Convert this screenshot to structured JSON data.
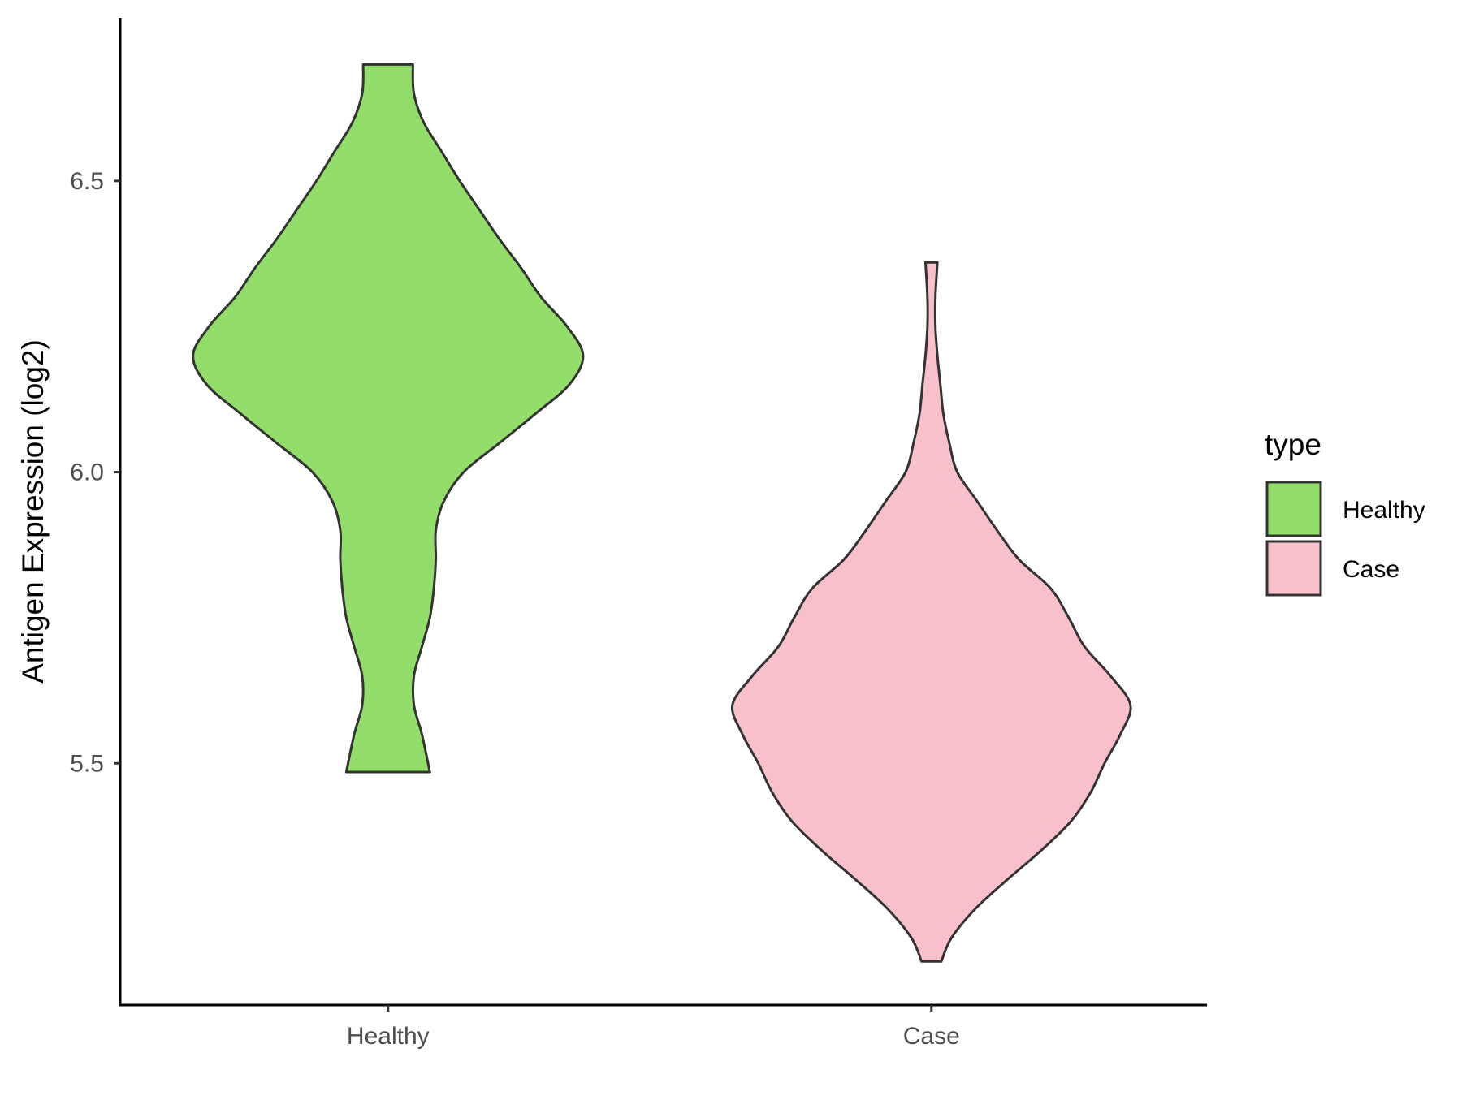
{
  "chart_data": {
    "type": "violin",
    "title": "",
    "xlabel": "",
    "ylabel": "Antigen Expression (log2)",
    "categories": [
      "Healthy",
      "Case"
    ],
    "ylim": [
      5.085,
      6.78
    ],
    "yticks": [
      5.5,
      6.0,
      6.5
    ],
    "ytick_labels": [
      "5.5",
      "6.0",
      "6.5"
    ],
    "grid": false,
    "legend": {
      "title": "type",
      "position": "right",
      "entries": [
        {
          "label": "Healthy",
          "color": "#93dd6b"
        },
        {
          "label": "Case",
          "color": "#f8c0cb"
        }
      ]
    },
    "series": [
      {
        "category": "Healthy",
        "color": "#93dd6b",
        "min": 5.485,
        "max": 6.7,
        "density_profile": [
          [
            5.485,
            0.21
          ],
          [
            5.55,
            0.17
          ],
          [
            5.6,
            0.13
          ],
          [
            5.65,
            0.13
          ],
          [
            5.7,
            0.17
          ],
          [
            5.75,
            0.21
          ],
          [
            5.8,
            0.23
          ],
          [
            5.85,
            0.24
          ],
          [
            5.9,
            0.24
          ],
          [
            5.95,
            0.28
          ],
          [
            6.0,
            0.38
          ],
          [
            6.05,
            0.56
          ],
          [
            6.1,
            0.74
          ],
          [
            6.15,
            0.91
          ],
          [
            6.2,
            0.98
          ],
          [
            6.25,
            0.9
          ],
          [
            6.3,
            0.77
          ],
          [
            6.35,
            0.67
          ],
          [
            6.4,
            0.56
          ],
          [
            6.45,
            0.46
          ],
          [
            6.5,
            0.36
          ],
          [
            6.55,
            0.27
          ],
          [
            6.6,
            0.18
          ],
          [
            6.65,
            0.13
          ],
          [
            6.7,
            0.125
          ]
        ]
      },
      {
        "category": "Case",
        "color": "#f8c0cb",
        "min": 5.16,
        "max": 6.36,
        "density_profile": [
          [
            5.16,
            0.05
          ],
          [
            5.2,
            0.1
          ],
          [
            5.25,
            0.22
          ],
          [
            5.3,
            0.38
          ],
          [
            5.35,
            0.55
          ],
          [
            5.4,
            0.7
          ],
          [
            5.45,
            0.8
          ],
          [
            5.5,
            0.87
          ],
          [
            5.55,
            0.95
          ],
          [
            5.6,
            1.0
          ],
          [
            5.65,
            0.9
          ],
          [
            5.7,
            0.77
          ],
          [
            5.75,
            0.69
          ],
          [
            5.8,
            0.6
          ],
          [
            5.85,
            0.44
          ],
          [
            5.9,
            0.33
          ],
          [
            5.95,
            0.23
          ],
          [
            6.0,
            0.13
          ],
          [
            6.05,
            0.09
          ],
          [
            6.1,
            0.06
          ],
          [
            6.15,
            0.045
          ],
          [
            6.2,
            0.03
          ],
          [
            6.25,
            0.02
          ],
          [
            6.3,
            0.02
          ],
          [
            6.36,
            0.03
          ]
        ]
      }
    ]
  }
}
